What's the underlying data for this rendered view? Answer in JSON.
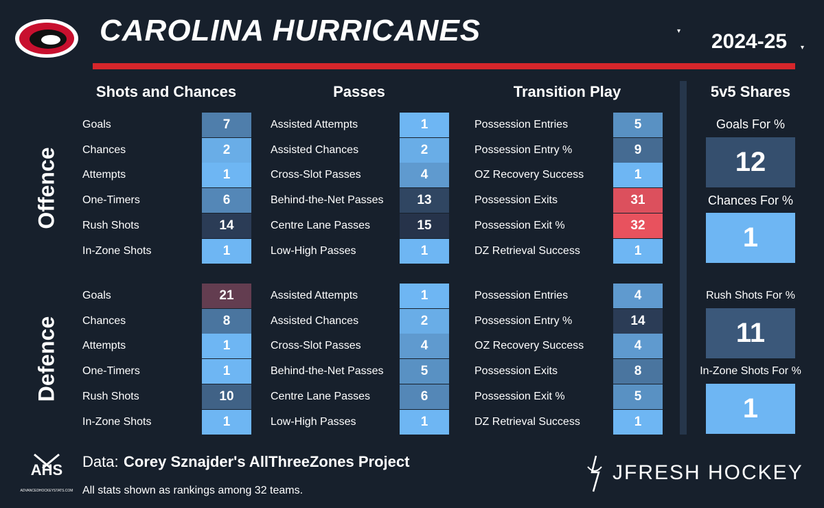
{
  "header": {
    "title": "CAROLINA HURRICANES",
    "season": "2024-25"
  },
  "column_titles": [
    "Shots and Chances",
    "Passes",
    "Transition Play"
  ],
  "sections": [
    {
      "label": "Offence",
      "columns": [
        [
          {
            "label": "Goals",
            "rank": 7
          },
          {
            "label": "Chances",
            "rank": 2
          },
          {
            "label": "Attempts",
            "rank": 1
          },
          {
            "label": "One-Timers",
            "rank": 6
          },
          {
            "label": "Rush Shots",
            "rank": 14
          },
          {
            "label": "In-Zone Shots",
            "rank": 1
          }
        ],
        [
          {
            "label": "Assisted Attempts",
            "rank": 1
          },
          {
            "label": "Assisted Chances",
            "rank": 2
          },
          {
            "label": "Cross-Slot Passes",
            "rank": 4
          },
          {
            "label": "Behind-the-Net Passes",
            "rank": 13
          },
          {
            "label": "Centre Lane Passes",
            "rank": 15
          },
          {
            "label": "Low-High Passes",
            "rank": 1
          }
        ],
        [
          {
            "label": "Possession Entries",
            "rank": 5
          },
          {
            "label": "Possession Entry %",
            "rank": 9
          },
          {
            "label": "OZ Recovery Success",
            "rank": 1
          },
          {
            "label": "Possession Exits",
            "rank": 31
          },
          {
            "label": "Possession Exit %",
            "rank": 32
          },
          {
            "label": "DZ Retrieval Success",
            "rank": 1
          }
        ]
      ]
    },
    {
      "label": "Defence",
      "columns": [
        [
          {
            "label": "Goals",
            "rank": 21
          },
          {
            "label": "Chances",
            "rank": 8
          },
          {
            "label": "Attempts",
            "rank": 1
          },
          {
            "label": "One-Timers",
            "rank": 1
          },
          {
            "label": "Rush Shots",
            "rank": 10
          },
          {
            "label": "In-Zone Shots",
            "rank": 1
          }
        ],
        [
          {
            "label": "Assisted Attempts",
            "rank": 1
          },
          {
            "label": "Assisted Chances",
            "rank": 2
          },
          {
            "label": "Cross-Slot Passes",
            "rank": 4
          },
          {
            "label": "Behind-the-Net Passes",
            "rank": 5
          },
          {
            "label": "Centre Lane Passes",
            "rank": 6
          },
          {
            "label": "Low-High Passes",
            "rank": 1
          }
        ],
        [
          {
            "label": "Possession Entries",
            "rank": 4
          },
          {
            "label": "Possession Entry %",
            "rank": 14
          },
          {
            "label": "OZ Recovery Success",
            "rank": 4
          },
          {
            "label": "Possession Exits",
            "rank": 8
          },
          {
            "label": "Possession Exit %",
            "rank": 5
          },
          {
            "label": "DZ Retrieval Success",
            "rank": 1
          }
        ]
      ]
    }
  ],
  "shares": {
    "title": "5v5 Shares",
    "items": [
      {
        "label": "Goals For %",
        "rank": 12
      },
      {
        "label": "Chances For %",
        "rank": 1
      },
      {
        "label": "Rush Shots For %",
        "rank": 11
      },
      {
        "label": "In-Zone Shots For %",
        "rank": 1
      }
    ]
  },
  "footer": {
    "data_prefix": "Data:",
    "data_source": "Corey Sznajder's AllThreeZones Project",
    "note": "All stats shown as rankings among 32 teams.",
    "brand": "JFRESH HOCKEY",
    "logo_text": "AHS",
    "logo_url": "ADVANCEDHOCKEYSTATS.COM"
  }
}
